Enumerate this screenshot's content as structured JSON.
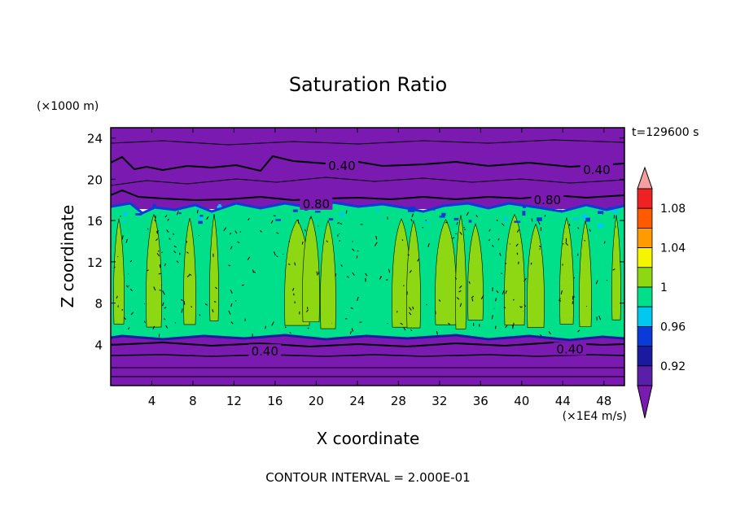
{
  "chart_data": {
    "type": "heatmap",
    "title": "Saturation Ratio",
    "xlabel": "X coordinate",
    "ylabel": "Z coordinate",
    "x_units": "(×1E4 m/s)",
    "y_units": "(×1000 m)",
    "time_label": "t=129600 s",
    "footer": "CONTOUR INTERVAL = 2.000E-01",
    "xlim": [
      0,
      50
    ],
    "ylim": [
      0,
      25
    ],
    "x_ticks": [
      "4",
      "8",
      "12",
      "16",
      "20",
      "24",
      "28",
      "32",
      "36",
      "40",
      "44",
      "48"
    ],
    "x_tick_values": [
      4,
      8,
      12,
      16,
      20,
      24,
      28,
      32,
      36,
      40,
      44,
      48
    ],
    "y_ticks": [
      "4",
      "8",
      "12",
      "16",
      "20",
      "24"
    ],
    "y_tick_values": [
      4,
      8,
      12,
      16,
      20,
      24
    ],
    "contour_labels": [
      {
        "text": "0.40",
        "x": 22.5,
        "z": 21.3
      },
      {
        "text": "0.40",
        "x": 47.3,
        "z": 20.9
      },
      {
        "text": "0.80",
        "x": 20.0,
        "z": 17.6
      },
      {
        "text": "0.80",
        "x": 42.5,
        "z": 18.0
      },
      {
        "text": "0.40",
        "x": 15.0,
        "z": 3.3
      },
      {
        "text": "0.40",
        "x": 44.7,
        "z": 3.5
      }
    ],
    "colorbar": {
      "labels": [
        "1.08",
        "1.04",
        "1",
        "0.96",
        "0.92"
      ],
      "label_values": [
        1.08,
        1.04,
        1.0,
        0.96,
        0.92
      ],
      "levels": [
        0.9,
        0.92,
        0.94,
        0.96,
        0.98,
        1.0,
        1.02,
        1.04,
        1.06,
        1.08,
        1.1
      ],
      "colors": [
        "#5a1fa8",
        "#1a1aa0",
        "#0a3ad8",
        "#00c8f0",
        "#00e08a",
        "#8ed813",
        "#f5f500",
        "#ff9a00",
        "#ff5a00",
        "#ee2222"
      ],
      "under_color": "#7a1ab0",
      "over_color": "#f4a0a0"
    },
    "layers": [
      {
        "name": "upper_dry",
        "z_range": [
          17.5,
          25
        ],
        "value": "< 0.90",
        "color": "#7a1ab0"
      },
      {
        "name": "cloud_layer",
        "z_range": [
          4.5,
          17.5
        ],
        "value": "0.98 - 1.02",
        "colors": [
          "#00e08a",
          "#8ed813"
        ]
      },
      {
        "name": "lower_dry",
        "z_range": [
          0,
          4.5
        ],
        "value": "< 0.90",
        "color": "#7a1ab0"
      }
    ]
  }
}
